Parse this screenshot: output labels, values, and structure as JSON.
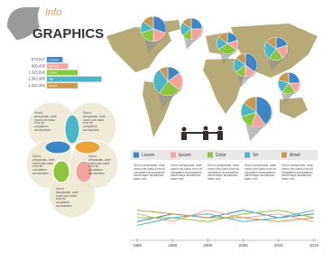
{
  "header": {
    "title_small": "Info",
    "title": "GRAPHICS"
  },
  "chart_data": [
    {
      "type": "bar",
      "categories": [
        "Lorem",
        "Ipsum",
        "Dolor",
        "Sit",
        "Amet"
      ],
      "values": [
        673527,
        905430,
        1325895,
        2342466,
        1322354
      ],
      "value_labels": [
        "673,527",
        "905,430",
        "1,325,895",
        "2,342,466",
        "1,322,354"
      ],
      "colors": [
        "#3f86c6",
        "#f2a49c",
        "#8cc63f",
        "#4db6c6",
        "#c9974d"
      ],
      "xlim": [
        0,
        2400000
      ]
    },
    {
      "type": "pie",
      "values": [
        30,
        20,
        20,
        15,
        15
      ],
      "colors": [
        "#3f86c6",
        "#f2a49c",
        "#8cc63f",
        "#4db6c6",
        "#c9974d"
      ]
    },
    {
      "type": "pie",
      "values": [
        25,
        25,
        15,
        20,
        15
      ],
      "colors": [
        "#3f86c6",
        "#f2a49c",
        "#8cc63f",
        "#4db6c6",
        "#c9974d"
      ]
    },
    {
      "type": "pie",
      "values": [
        20,
        15,
        30,
        20,
        15
      ],
      "colors": [
        "#3f86c6",
        "#f2a49c",
        "#8cc63f",
        "#4db6c6",
        "#c9974d"
      ]
    },
    {
      "type": "pie",
      "values": [
        15,
        20,
        25,
        30,
        10
      ],
      "colors": [
        "#3f86c6",
        "#f2a49c",
        "#8cc63f",
        "#4db6c6",
        "#c9974d"
      ]
    },
    {
      "type": "pie",
      "values": [
        35,
        15,
        15,
        20,
        15
      ],
      "colors": [
        "#3f86c6",
        "#f2a49c",
        "#8cc63f",
        "#4db6c6",
        "#c9974d"
      ]
    },
    {
      "type": "pie",
      "values": [
        20,
        20,
        20,
        25,
        15
      ],
      "colors": [
        "#3f86c6",
        "#f2a49c",
        "#8cc63f",
        "#4db6c6",
        "#c9974d"
      ]
    },
    {
      "type": "pie",
      "values": [
        25,
        15,
        20,
        20,
        20
      ],
      "colors": [
        "#3f86c6",
        "#f2a49c",
        "#8cc63f",
        "#4db6c6",
        "#c9974d"
      ]
    },
    {
      "type": "pie",
      "values": [
        40,
        15,
        15,
        15,
        15
      ],
      "colors": [
        "#3f86c6",
        "#f2a49c",
        "#8cc63f",
        "#4db6c6",
        "#c9974d"
      ]
    },
    {
      "type": "line",
      "categories": [
        "1985",
        "1990",
        "2000",
        "2005",
        "2010",
        "2015"
      ],
      "ylim": [
        0,
        10
      ],
      "series": [
        {
          "name": "Lorem",
          "color": "#3f86c6",
          "values": [
            4,
            6,
            5,
            7,
            5,
            6
          ]
        },
        {
          "name": "Ipsum",
          "color": "#f2a49c",
          "values": [
            6,
            4,
            7,
            5,
            6,
            4
          ]
        },
        {
          "name": "Dolor",
          "color": "#8cc63f",
          "values": [
            5,
            5,
            4,
            6,
            7,
            5
          ]
        },
        {
          "name": "Sit",
          "color": "#4db6c6",
          "values": [
            3,
            5,
            6,
            4,
            5,
            7
          ]
        },
        {
          "name": "Amet",
          "color": "#c9974d",
          "values": [
            7,
            6,
            5,
            5,
            4,
            5
          ]
        }
      ]
    }
  ],
  "venn": {
    "texts": [
      "Sed ut perspiciatis, unde omnis iste natus error sit voluptatem accusantium",
      "Sed ut perspiciatis, unde omnis iste natus error sit voluptatem accusantium",
      "Sed ut perspiciatis, unde omnis iste natus error sit voluptatem accusantium",
      "Sed ut perspiciatis, unde omnis iste natus error sit voluptatem accusantium",
      "Sed ut perspiciatis, unde omnis iste natus error sit voluptatem accusantium"
    ]
  },
  "columns": {
    "texts": [
      "Sed ut perspiciatis, unde omnis iste natus error sit voluptatem accusantium doloremque laudantium totam rem",
      "Sed ut perspiciatis, unde omnis iste natus error sit voluptatem accusantium doloremque laudantium totam rem",
      "Sed ut perspiciatis, unde omnis iste natus error sit voluptatem accusantium doloremque laudantium totam rem",
      "Sed ut perspiciatis, unde omnis iste natus error sit voluptatem accusantium doloremque laudantium totam rem",
      "Sed ut perspiciatis, unde omnis iste natus error sit voluptatem accusantium doloremque laudantium totam rem"
    ]
  }
}
